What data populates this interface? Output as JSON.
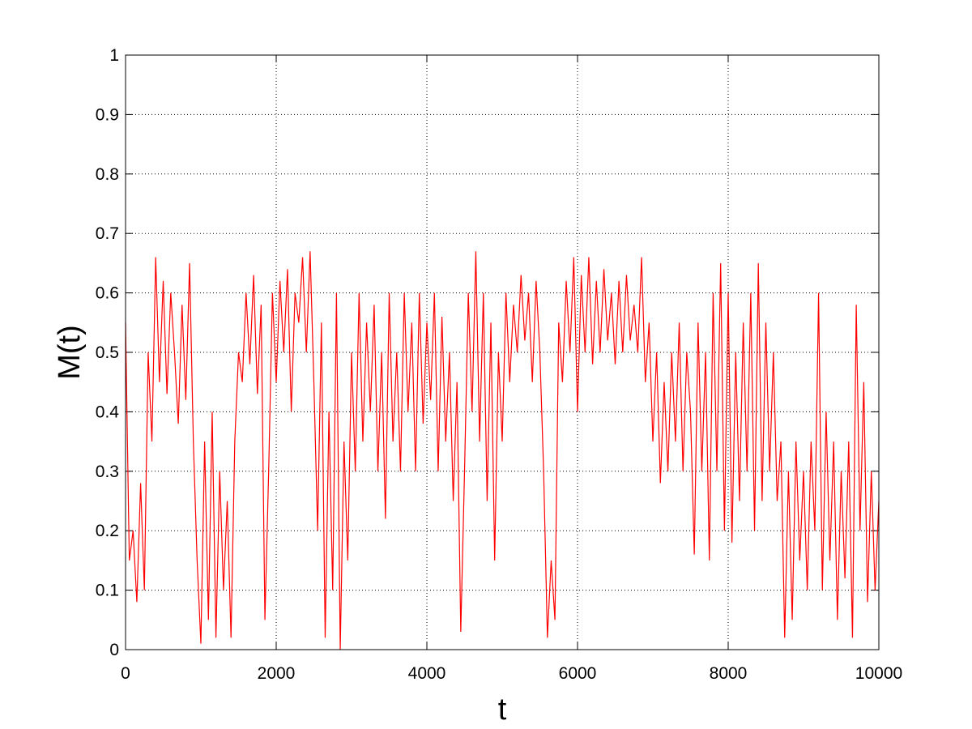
{
  "chart_data": {
    "type": "line",
    "xlabel": "t",
    "ylabel": "M(t)",
    "x": [
      0,
      50,
      100,
      150,
      200,
      250,
      300,
      350,
      400,
      450,
      500,
      550,
      600,
      650,
      700,
      750,
      800,
      850,
      900,
      950,
      1000,
      1050,
      1100,
      1150,
      1200,
      1250,
      1300,
      1350,
      1400,
      1450,
      1500,
      1550,
      1600,
      1650,
      1700,
      1750,
      1800,
      1850,
      1900,
      1950,
      2000,
      2050,
      2100,
      2150,
      2200,
      2250,
      2300,
      2350,
      2400,
      2450,
      2500,
      2550,
      2600,
      2650,
      2700,
      2750,
      2800,
      2850,
      2900,
      2950,
      3000,
      3050,
      3100,
      3150,
      3200,
      3250,
      3300,
      3350,
      3400,
      3450,
      3500,
      3550,
      3600,
      3650,
      3700,
      3750,
      3800,
      3850,
      3900,
      3950,
      4000,
      4050,
      4100,
      4150,
      4200,
      4250,
      4300,
      4350,
      4400,
      4450,
      4500,
      4550,
      4600,
      4650,
      4700,
      4750,
      4800,
      4850,
      4900,
      4950,
      5000,
      5050,
      5100,
      5150,
      5200,
      5250,
      5300,
      5350,
      5400,
      5450,
      5500,
      5550,
      5600,
      5650,
      5700,
      5750,
      5800,
      5850,
      5900,
      5950,
      6000,
      6050,
      6100,
      6150,
      6200,
      6250,
      6300,
      6350,
      6400,
      6450,
      6500,
      6550,
      6600,
      6650,
      6700,
      6750,
      6800,
      6850,
      6900,
      6950,
      7000,
      7050,
      7100,
      7150,
      7200,
      7250,
      7300,
      7350,
      7400,
      7450,
      7500,
      7550,
      7600,
      7650,
      7700,
      7750,
      7800,
      7850,
      7900,
      7950,
      8000,
      8050,
      8100,
      8150,
      8200,
      8250,
      8300,
      8350,
      8400,
      8450,
      8500,
      8550,
      8600,
      8650,
      8700,
      8750,
      8800,
      8850,
      8900,
      8950,
      9000,
      9050,
      9100,
      9150,
      9200,
      9250,
      9300,
      9350,
      9400,
      9450,
      9500,
      9550,
      9600,
      9650,
      9700,
      9750,
      9800,
      9850,
      9900,
      9950,
      10000
    ],
    "series": [
      {
        "color": "#ff0000",
        "values": [
          0.55,
          0.15,
          0.2,
          0.08,
          0.28,
          0.1,
          0.5,
          0.35,
          0.66,
          0.45,
          0.62,
          0.43,
          0.6,
          0.5,
          0.38,
          0.58,
          0.42,
          0.65,
          0.35,
          0.15,
          0.01,
          0.35,
          0.05,
          0.4,
          0.02,
          0.3,
          0.1,
          0.25,
          0.02,
          0.35,
          0.5,
          0.45,
          0.6,
          0.48,
          0.63,
          0.43,
          0.58,
          0.05,
          0.3,
          0.6,
          0.45,
          0.62,
          0.5,
          0.64,
          0.4,
          0.6,
          0.55,
          0.66,
          0.5,
          0.67,
          0.45,
          0.2,
          0.55,
          0.02,
          0.4,
          0.1,
          0.6,
          0.0,
          0.35,
          0.15,
          0.5,
          0.3,
          0.6,
          0.35,
          0.55,
          0.4,
          0.58,
          0.3,
          0.5,
          0.22,
          0.6,
          0.35,
          0.5,
          0.3,
          0.6,
          0.4,
          0.55,
          0.3,
          0.6,
          0.38,
          0.55,
          0.42,
          0.6,
          0.3,
          0.56,
          0.35,
          0.5,
          0.25,
          0.45,
          0.03,
          0.3,
          0.6,
          0.4,
          0.67,
          0.35,
          0.6,
          0.25,
          0.55,
          0.15,
          0.5,
          0.35,
          0.6,
          0.45,
          0.58,
          0.5,
          0.63,
          0.52,
          0.6,
          0.45,
          0.62,
          0.5,
          0.3,
          0.02,
          0.15,
          0.05,
          0.55,
          0.45,
          0.62,
          0.5,
          0.66,
          0.4,
          0.63,
          0.5,
          0.66,
          0.48,
          0.62,
          0.5,
          0.64,
          0.52,
          0.6,
          0.48,
          0.62,
          0.5,
          0.63,
          0.52,
          0.58,
          0.5,
          0.66,
          0.45,
          0.55,
          0.35,
          0.5,
          0.28,
          0.45,
          0.3,
          0.5,
          0.35,
          0.55,
          0.3,
          0.5,
          0.4,
          0.16,
          0.55,
          0.3,
          0.5,
          0.15,
          0.6,
          0.3,
          0.65,
          0.2,
          0.6,
          0.18,
          0.5,
          0.25,
          0.55,
          0.3,
          0.6,
          0.2,
          0.65,
          0.25,
          0.55,
          0.3,
          0.5,
          0.25,
          0.35,
          0.02,
          0.3,
          0.05,
          0.35,
          0.15,
          0.3,
          0.1,
          0.35,
          0.2,
          0.6,
          0.1,
          0.4,
          0.15,
          0.35,
          0.05,
          0.3,
          0.12,
          0.35,
          0.02,
          0.58,
          0.2,
          0.45,
          0.08,
          0.3,
          0.1,
          0.25
        ]
      }
    ],
    "xlim": [
      0,
      10000
    ],
    "ylim": [
      0,
      1
    ],
    "xticks": [
      0,
      2000,
      4000,
      6000,
      8000,
      10000
    ],
    "yticks": [
      0,
      0.1,
      0.2,
      0.3,
      0.4,
      0.5,
      0.6,
      0.7,
      0.8,
      0.9,
      1
    ],
    "grid": true
  }
}
